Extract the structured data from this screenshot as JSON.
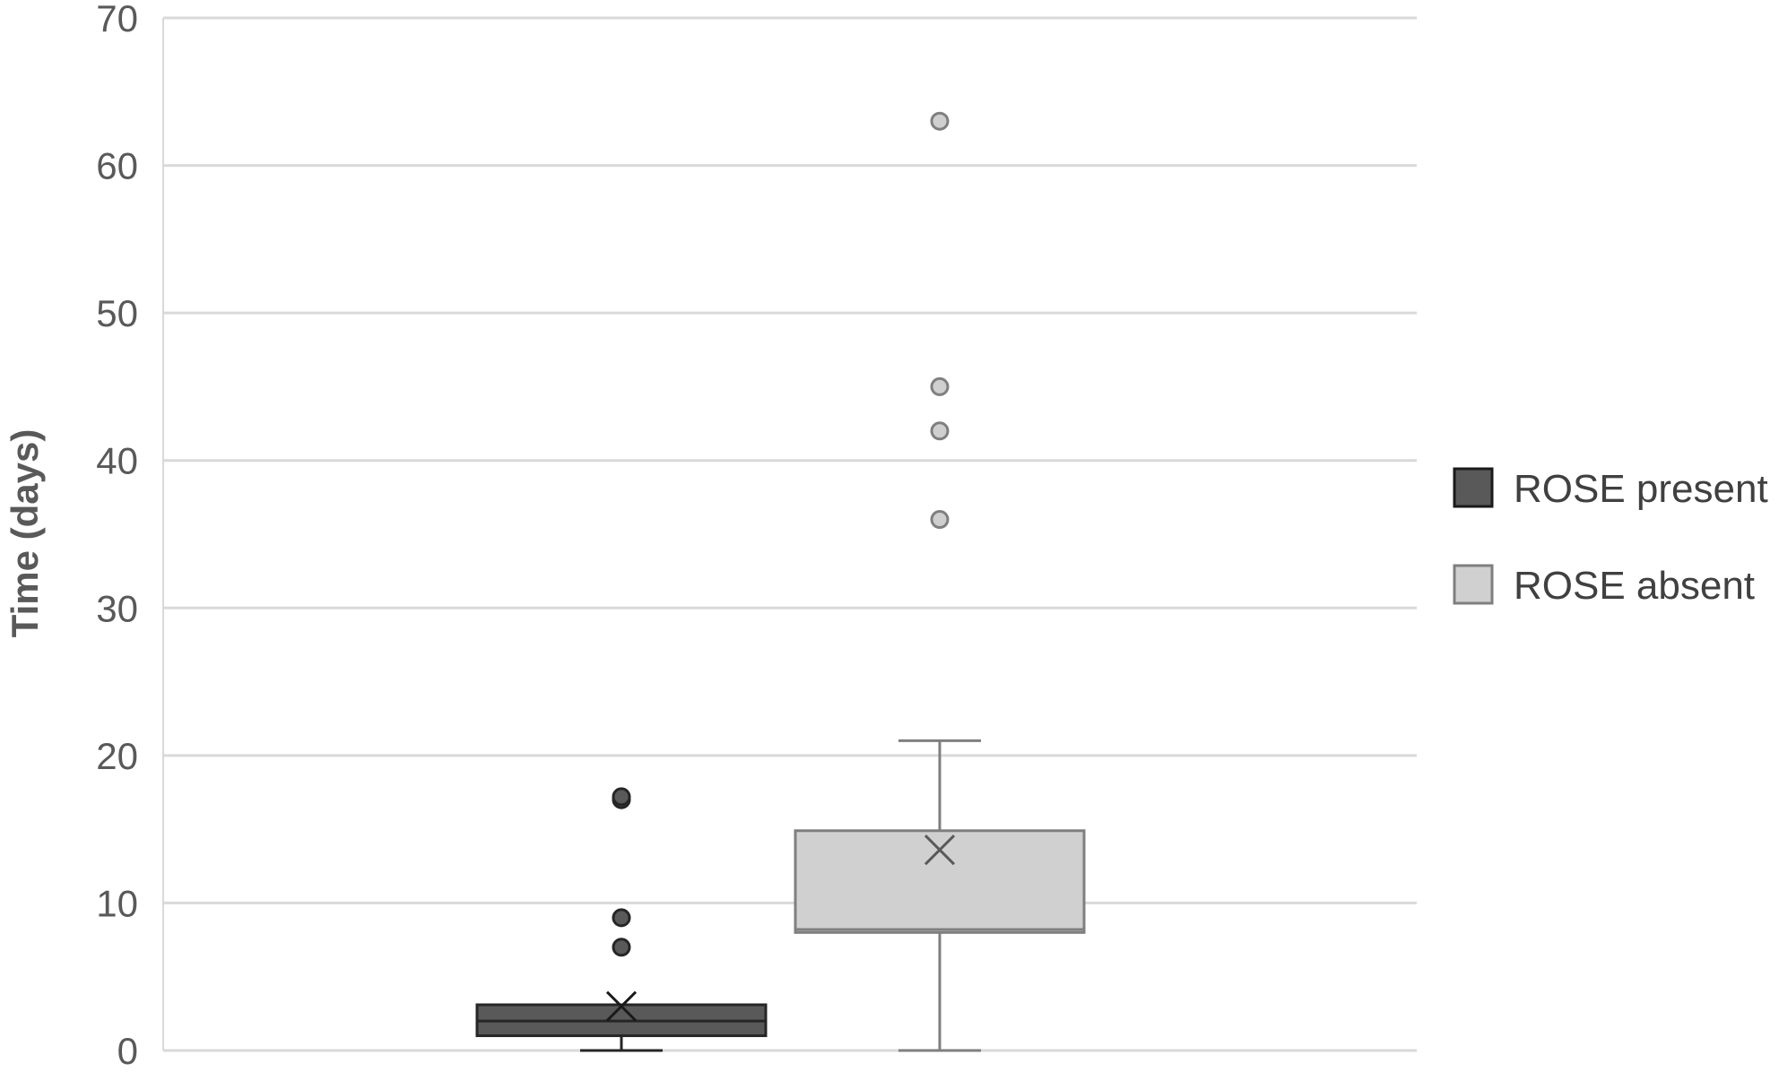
{
  "chart_data": {
    "type": "box",
    "ylabel": "Time (days)",
    "xlabel": "",
    "ylim": [
      0,
      70
    ],
    "y_ticks": [
      "0",
      "10",
      "20",
      "30",
      "40",
      "50",
      "60",
      "70"
    ],
    "grid": true,
    "legend_position": "right",
    "series": [
      {
        "name": "ROSE present",
        "color": "#595959",
        "min": 0,
        "q1": 1,
        "median": 2,
        "q3": 3.1,
        "max": 3.1,
        "mean": 3,
        "outliers": [
          7,
          9,
          17,
          17.2
        ]
      },
      {
        "name": "ROSE absent",
        "color": "#d0d0d0",
        "min": 0,
        "q1": 8,
        "median": 8.2,
        "q3": 14.9,
        "max": 21,
        "mean": 13.6,
        "outliers": [
          36,
          42,
          45,
          63
        ]
      }
    ]
  }
}
